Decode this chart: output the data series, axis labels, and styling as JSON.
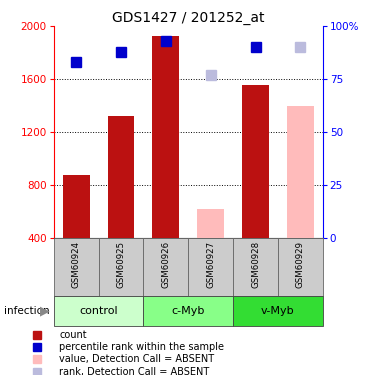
{
  "title": "GDS1427 / 201252_at",
  "samples": [
    "GSM60924",
    "GSM60925",
    "GSM60926",
    "GSM60927",
    "GSM60928",
    "GSM60929"
  ],
  "bar_values": [
    880,
    1320,
    1930,
    620,
    1560,
    1400
  ],
  "bar_absent": [
    false,
    false,
    false,
    true,
    false,
    true
  ],
  "rank_values": [
    83,
    88,
    93,
    77,
    90,
    90
  ],
  "rank_absent": [
    false,
    false,
    false,
    true,
    false,
    true
  ],
  "bar_color_present": "#bb1111",
  "bar_color_absent": "#ffbbbb",
  "rank_color_present": "#0000cc",
  "rank_color_absent": "#bbbbdd",
  "ylim_left": [
    400,
    2000
  ],
  "ylim_right": [
    0,
    100
  ],
  "yticks_left": [
    400,
    800,
    1200,
    1600,
    2000
  ],
  "yticks_right": [
    0,
    25,
    50,
    75,
    100
  ],
  "ytick_labels_right": [
    "0",
    "25",
    "50",
    "75",
    "100%"
  ],
  "groups": [
    {
      "label": "control",
      "start": 0,
      "end": 1,
      "color": "#ccffcc"
    },
    {
      "label": "c-Myb",
      "start": 2,
      "end": 3,
      "color": "#88ff88"
    },
    {
      "label": "v-Myb",
      "start": 4,
      "end": 5,
      "color": "#33dd33"
    }
  ],
  "infection_label": "infection",
  "legend_items": [
    {
      "color": "#bb1111",
      "label": "count",
      "marker": "s"
    },
    {
      "color": "#0000cc",
      "label": "percentile rank within the sample",
      "marker": "s"
    },
    {
      "color": "#ffbbbb",
      "label": "value, Detection Call = ABSENT",
      "marker": "s"
    },
    {
      "color": "#bbbbdd",
      "label": "rank, Detection Call = ABSENT",
      "marker": "s"
    }
  ],
  "bar_width": 0.6,
  "rank_marker_size": 7
}
